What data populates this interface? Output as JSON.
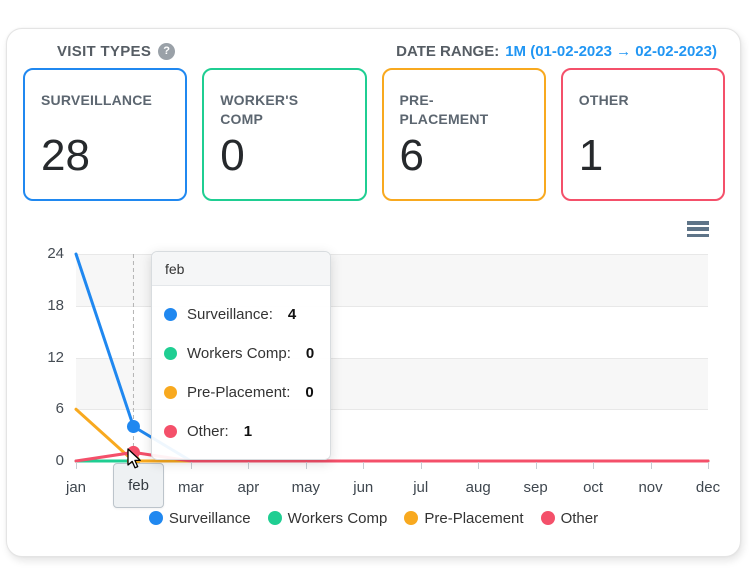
{
  "header": {
    "title": "VISIT TYPES",
    "help_icon": "?",
    "date_range_label": "DATE RANGE:",
    "date_range_value": "1M (01-02-2023 → 02-02-2023)"
  },
  "cards": [
    {
      "label": "SURVEILLANCE",
      "value": "28",
      "color": "#2088f0"
    },
    {
      "label": "WORKER'S COMP",
      "value": "0",
      "color": "#1fce92"
    },
    {
      "label": "PRE-PLACEMENT",
      "value": "6",
      "color": "#f8a91f"
    },
    {
      "label": "OTHER",
      "value": "1",
      "color": "#f4506a"
    }
  ],
  "chart_data": {
    "type": "line",
    "categories": [
      "jan",
      "feb",
      "mar",
      "apr",
      "may",
      "jun",
      "jul",
      "aug",
      "sep",
      "oct",
      "nov",
      "dec"
    ],
    "series": [
      {
        "name": "Surveillance",
        "color": "#2088f0",
        "values": [
          24,
          4,
          0,
          0,
          0,
          0,
          0,
          0,
          0,
          0,
          0,
          0
        ]
      },
      {
        "name": "Workers Comp",
        "color": "#1fce92",
        "values": [
          0,
          0,
          0,
          0,
          0,
          0,
          0,
          0,
          0,
          0,
          0,
          0
        ]
      },
      {
        "name": "Pre-Placement",
        "color": "#f8a91f",
        "values": [
          6,
          0,
          0,
          0,
          0,
          0,
          0,
          0,
          0,
          0,
          0,
          0
        ]
      },
      {
        "name": "Other",
        "color": "#f4506a",
        "values": [
          0,
          1,
          0,
          0,
          0,
          0,
          0,
          0,
          0,
          0,
          0,
          0
        ]
      }
    ],
    "ylim": [
      0,
      24
    ],
    "yticks": [
      0,
      6,
      12,
      18,
      24
    ],
    "xlabel": "",
    "ylabel": "",
    "grid": "horizontal",
    "alternating_bands": true,
    "band_color": "#f7f7f7",
    "legend_position": "bottom",
    "highlighted_category": "feb",
    "crosshair": "dashed-vertical"
  },
  "tooltip": {
    "title": "feb",
    "rows": [
      {
        "label": "Surveillance:",
        "value": "4",
        "color": "#2088f0"
      },
      {
        "label": "Workers Comp:",
        "value": "0",
        "color": "#1fce92"
      },
      {
        "label": "Pre-Placement:",
        "value": "0",
        "color": "#f8a91f"
      },
      {
        "label": "Other:",
        "value": "1",
        "color": "#f4506a"
      }
    ]
  }
}
